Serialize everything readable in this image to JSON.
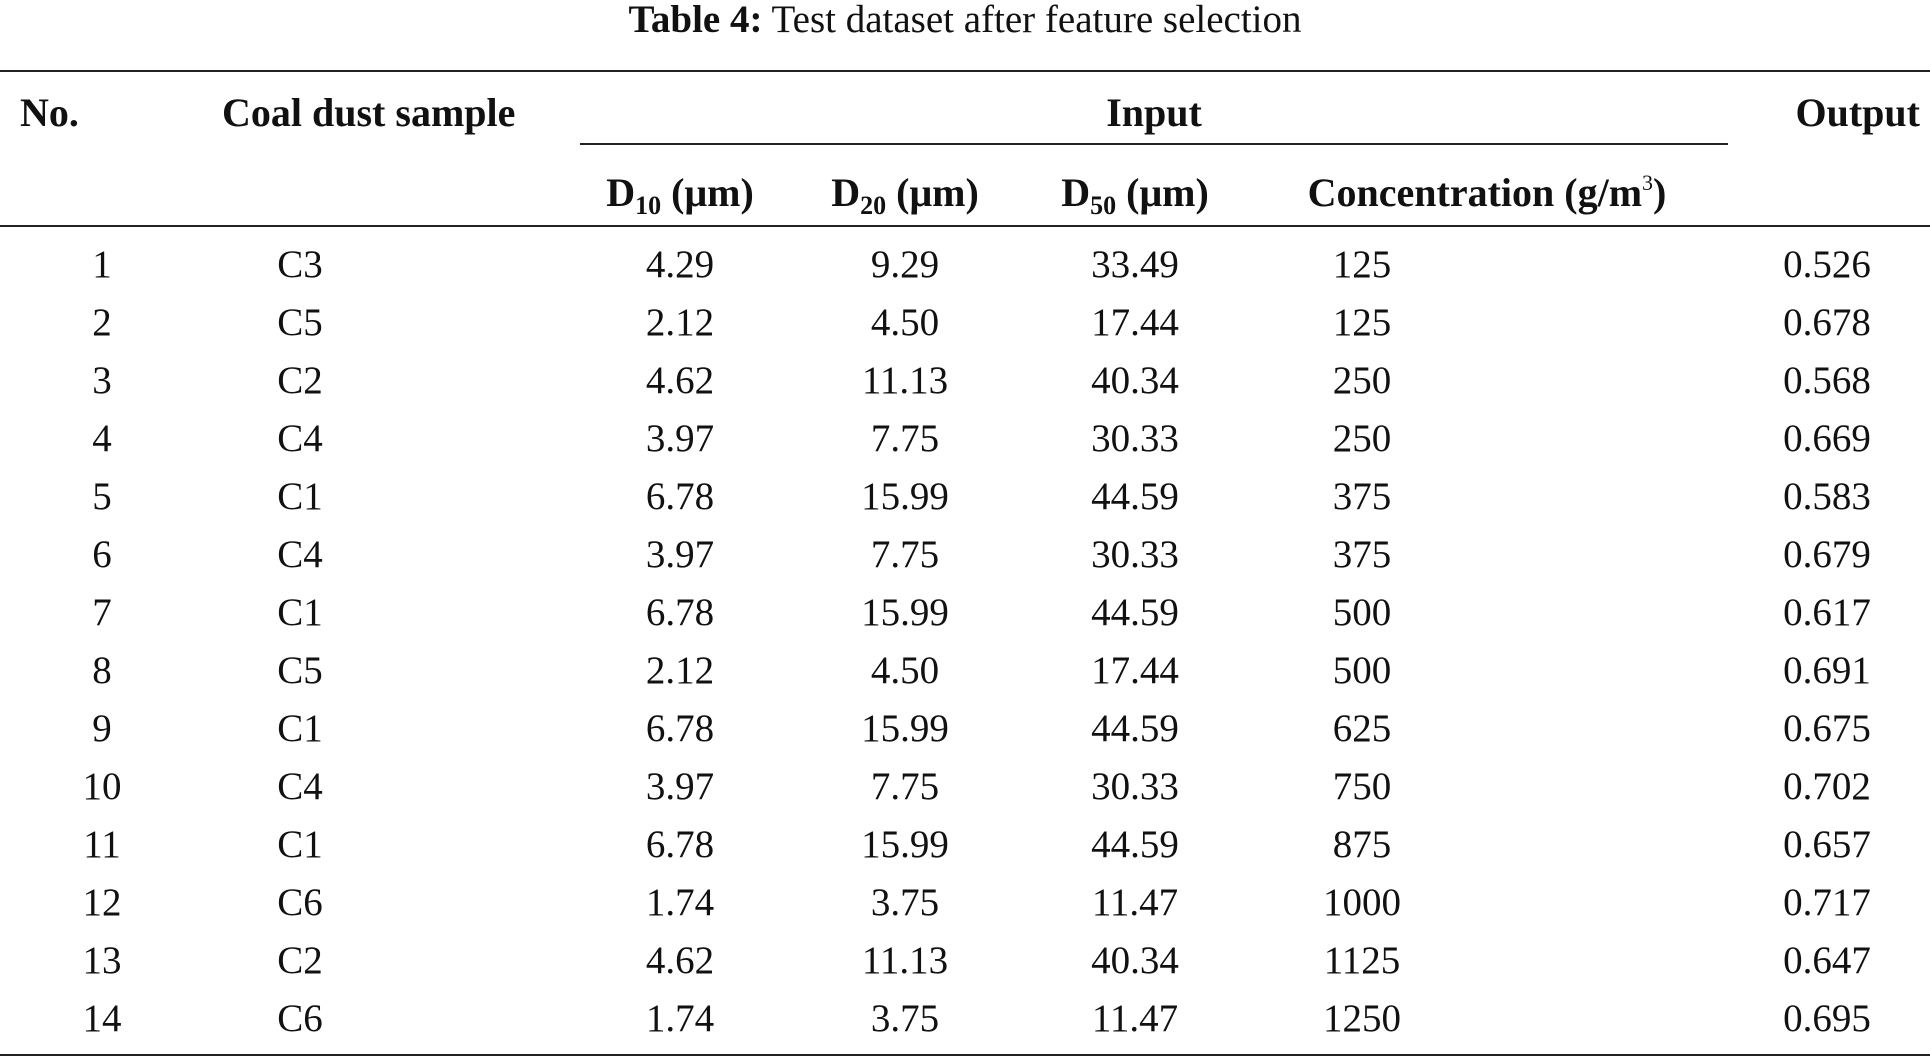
{
  "caption": {
    "label": "Table 4:",
    "text": " Test dataset after feature selection"
  },
  "header": {
    "no": "No.",
    "sample": "Coal dust sample",
    "input": "Input",
    "output": "Output",
    "d10": {
      "base": "D",
      "sub": "10",
      "unit": " (μm)"
    },
    "d20": {
      "base": "D",
      "sub": "20",
      "unit": " (μm)"
    },
    "d50": {
      "base": "D",
      "sub": "50",
      "unit": " (μm)"
    },
    "concentration": {
      "base": "Concentration (g/m",
      "sup": "3",
      "close": ")"
    }
  },
  "rows": [
    {
      "no": "1",
      "sample": "C3",
      "d10": "4.29",
      "d20": "9.29",
      "d50": "33.49",
      "conc": "125",
      "out": "0.526"
    },
    {
      "no": "2",
      "sample": "C5",
      "d10": "2.12",
      "d20": "4.50",
      "d50": "17.44",
      "conc": "125",
      "out": "0.678"
    },
    {
      "no": "3",
      "sample": "C2",
      "d10": "4.62",
      "d20": "11.13",
      "d50": "40.34",
      "conc": "250",
      "out": "0.568"
    },
    {
      "no": "4",
      "sample": "C4",
      "d10": "3.97",
      "d20": "7.75",
      "d50": "30.33",
      "conc": "250",
      "out": "0.669"
    },
    {
      "no": "5",
      "sample": "C1",
      "d10": "6.78",
      "d20": "15.99",
      "d50": "44.59",
      "conc": "375",
      "out": "0.583"
    },
    {
      "no": "6",
      "sample": "C4",
      "d10": "3.97",
      "d20": "7.75",
      "d50": "30.33",
      "conc": "375",
      "out": "0.679"
    },
    {
      "no": "7",
      "sample": "C1",
      "d10": "6.78",
      "d20": "15.99",
      "d50": "44.59",
      "conc": "500",
      "out": "0.617"
    },
    {
      "no": "8",
      "sample": "C5",
      "d10": "2.12",
      "d20": "4.50",
      "d50": "17.44",
      "conc": "500",
      "out": "0.691"
    },
    {
      "no": "9",
      "sample": "C1",
      "d10": "6.78",
      "d20": "15.99",
      "d50": "44.59",
      "conc": "625",
      "out": "0.675"
    },
    {
      "no": "10",
      "sample": "C4",
      "d10": "3.97",
      "d20": "7.75",
      "d50": "30.33",
      "conc": "750",
      "out": "0.702"
    },
    {
      "no": "11",
      "sample": "C1",
      "d10": "6.78",
      "d20": "15.99",
      "d50": "44.59",
      "conc": "875",
      "out": "0.657"
    },
    {
      "no": "12",
      "sample": "C6",
      "d10": "1.74",
      "d20": "3.75",
      "d50": "11.47",
      "conc": "1000",
      "out": "0.717"
    },
    {
      "no": "13",
      "sample": "C2",
      "d10": "4.62",
      "d20": "11.13",
      "d50": "40.34",
      "conc": "1125",
      "out": "0.647"
    },
    {
      "no": "14",
      "sample": "C6",
      "d10": "1.74",
      "d20": "3.75",
      "d50": "11.47",
      "conc": "1250",
      "out": "0.695"
    }
  ]
}
